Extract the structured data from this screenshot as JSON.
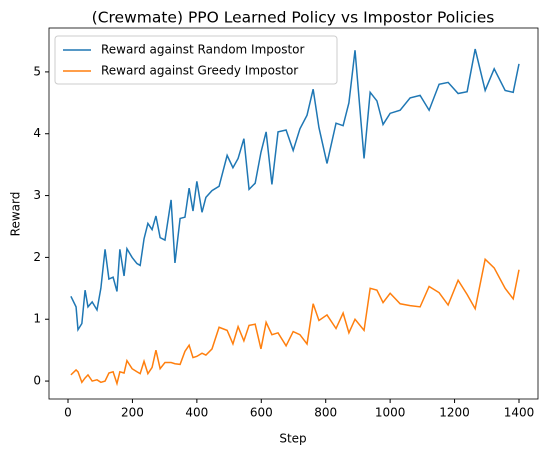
{
  "chart_data": {
    "type": "line",
    "title": "(Crewmate) PPO Learned Policy vs Impostor Policies",
    "xlabel": "Step",
    "ylabel": "Reward",
    "x": [
      9,
      25,
      31,
      43,
      53,
      62,
      75,
      90,
      102,
      115,
      127,
      140,
      152,
      161,
      174,
      183,
      199,
      214,
      224,
      236,
      248,
      261,
      273,
      286,
      301,
      320,
      332,
      348,
      363,
      376,
      388,
      400,
      416,
      428,
      447,
      469,
      494,
      512,
      528,
      546,
      562,
      581,
      599,
      615,
      633,
      652,
      677,
      699,
      720,
      742,
      761,
      779,
      804,
      832,
      854,
      872,
      891,
      919,
      938,
      959,
      978,
      1000,
      1031,
      1062,
      1093,
      1121,
      1152,
      1180,
      1211,
      1239,
      1264,
      1295,
      1323,
      1357,
      1382,
      1400
    ],
    "series": [
      {
        "name": "Reward against Random Impostor",
        "color": "#1f77b4",
        "values": [
          1.37,
          1.2,
          0.83,
          0.93,
          1.47,
          1.2,
          1.28,
          1.15,
          1.5,
          2.13,
          1.65,
          1.68,
          1.45,
          2.13,
          1.7,
          2.14,
          2.0,
          1.9,
          1.87,
          2.3,
          2.55,
          2.45,
          2.67,
          2.32,
          2.28,
          2.93,
          1.91,
          2.63,
          2.65,
          3.12,
          2.75,
          3.23,
          2.73,
          2.97,
          3.08,
          3.15,
          3.65,
          3.45,
          3.6,
          3.92,
          3.1,
          3.2,
          3.7,
          4.03,
          3.18,
          4.03,
          4.06,
          3.73,
          4.08,
          4.3,
          4.72,
          4.1,
          3.52,
          4.17,
          4.13,
          4.5,
          5.35,
          3.6,
          4.67,
          4.53,
          4.15,
          4.33,
          4.38,
          4.58,
          4.62,
          4.38,
          4.8,
          4.83,
          4.65,
          4.68,
          5.37,
          4.7,
          5.05,
          4.7,
          4.67,
          5.13
        ]
      },
      {
        "name": "Reward against Greedy Impostor",
        "color": "#ff7f0e",
        "values": [
          0.1,
          0.18,
          0.15,
          -0.02,
          0.05,
          0.1,
          0,
          0.02,
          -0.02,
          0.0,
          0.13,
          0.15,
          -0.04,
          0.15,
          0.13,
          0.33,
          0.2,
          0.15,
          0.12,
          0.32,
          0.12,
          0.22,
          0.5,
          0.2,
          0.3,
          0.3,
          0.28,
          0.27,
          0.48,
          0.58,
          0.38,
          0.4,
          0.45,
          0.42,
          0.52,
          0.87,
          0.82,
          0.6,
          0.88,
          0.65,
          0.9,
          0.92,
          0.52,
          0.95,
          0.75,
          0.78,
          0.57,
          0.8,
          0.75,
          0.6,
          1.25,
          0.98,
          1.07,
          0.85,
          1.1,
          0.78,
          1.0,
          0.82,
          1.5,
          1.47,
          1.27,
          1.42,
          1.25,
          1.22,
          1.2,
          1.53,
          1.43,
          1.23,
          1.63,
          1.4,
          1.17,
          1.97,
          1.83,
          1.5,
          1.33,
          1.8
        ]
      }
    ],
    "xlim": [
      -59,
      1459
    ],
    "ylim": [
      -0.29,
      5.71
    ],
    "xticks": [
      0,
      200,
      400,
      600,
      800,
      1000,
      1200,
      1400
    ],
    "yticks": [
      0,
      1,
      2,
      3,
      4,
      5
    ],
    "legend": "upper left"
  }
}
